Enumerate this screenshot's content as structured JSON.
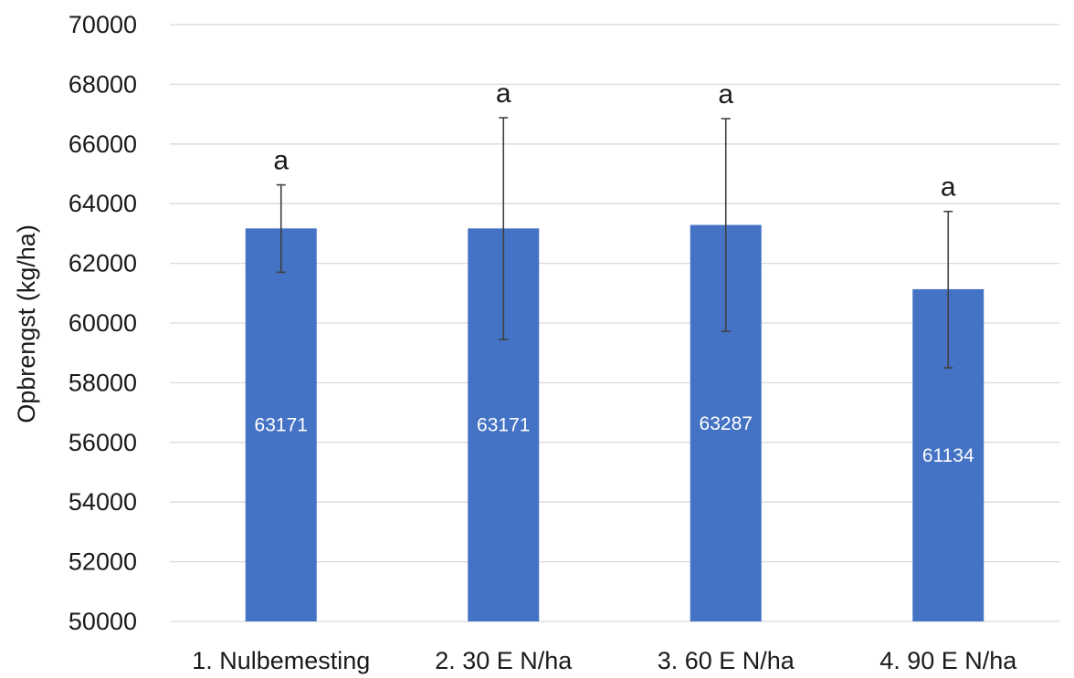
{
  "chart_data": {
    "type": "bar",
    "title": "",
    "xlabel": "",
    "ylabel": "Opbrengst (kg/ha)",
    "ylim": [
      50000,
      70000
    ],
    "yticks": [
      50000,
      52000,
      54000,
      56000,
      58000,
      60000,
      62000,
      64000,
      66000,
      68000,
      70000
    ],
    "grid": true,
    "legend": "none",
    "bar_color": "#4472C4",
    "categories": [
      "1. Nulbemesting",
      "2. 30 E N/ha",
      "3. 60 E N/ha",
      "4. 90 E N/ha"
    ],
    "values": [
      63171,
      63171,
      63287,
      61134
    ],
    "data_labels": [
      "63171",
      "63171",
      "63287",
      "61134"
    ],
    "error_low": [
      61700,
      59450,
      59720,
      58500
    ],
    "error_high": [
      64630,
      66880,
      66850,
      63740
    ],
    "significance_labels": [
      "a",
      "a",
      "a",
      "a"
    ]
  }
}
